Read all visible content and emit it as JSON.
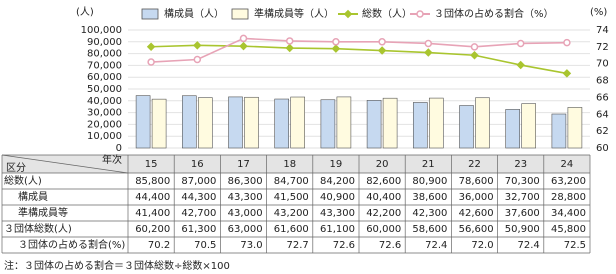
{
  "chart_data": {
    "type": "bar-line",
    "y_label": "(人)",
    "y2_label": "(%)",
    "categories": [
      "15",
      "16",
      "17",
      "18",
      "19",
      "20",
      "21",
      "22",
      "23",
      "24"
    ],
    "ylim": [
      0,
      100000
    ],
    "yticks": [
      {
        "value": 0,
        "label": "0"
      },
      {
        "value": 10000,
        "label": "10,000"
      },
      {
        "value": 20000,
        "label": "20,000"
      },
      {
        "value": 30000,
        "label": "30,000"
      },
      {
        "value": 40000,
        "label": "40,000"
      },
      {
        "value": 50000,
        "label": "50,000"
      },
      {
        "value": 60000,
        "label": "60,000"
      },
      {
        "value": 70000,
        "label": "70,000"
      },
      {
        "value": 80000,
        "label": "80,000"
      },
      {
        "value": 90000,
        "label": "90,000"
      },
      {
        "value": 100000,
        "label": "100,000"
      }
    ],
    "y2lim": [
      60,
      74
    ],
    "y2ticks": [
      60,
      62,
      64,
      66,
      68,
      70,
      72,
      74
    ],
    "grid": true,
    "series": [
      {
        "name": "構成員（人）",
        "type": "bar",
        "color": "#c6d9f0",
        "values": [
          44400,
          44300,
          43300,
          41500,
          40900,
          40400,
          38600,
          36000,
          32700,
          28800
        ]
      },
      {
        "name": "準構成員等（人）",
        "type": "bar",
        "color": "#fffbe0",
        "values": [
          41400,
          42700,
          43000,
          43200,
          43300,
          42200,
          42300,
          42600,
          37600,
          34400
        ]
      },
      {
        "name": "総数（人）",
        "type": "line",
        "color": "#a9c52f",
        "values": [
          85800,
          87000,
          86300,
          84700,
          84200,
          82600,
          80900,
          78600,
          70300,
          63200
        ]
      },
      {
        "name": "３団体の占める割合（%）",
        "type": "line",
        "axis": "y2",
        "color": "#e7a3b6",
        "values": [
          70.2,
          70.5,
          73.0,
          72.7,
          72.6,
          72.6,
          72.4,
          72.0,
          72.4,
          72.5
        ]
      }
    ]
  },
  "table": {
    "corner_col": "年次",
    "corner_row": "区分",
    "rows": [
      {
        "label": "総数(人)",
        "cells": [
          "85,800",
          "87,000",
          "86,300",
          "84,700",
          "84,200",
          "82,600",
          "80,900",
          "78,600",
          "70,300",
          "63,200"
        ]
      },
      {
        "label": "構成員",
        "cells": [
          "44,400",
          "44,300",
          "43,300",
          "41,500",
          "40,900",
          "40,400",
          "38,600",
          "36,000",
          "32,700",
          "28,800"
        ]
      },
      {
        "label": "準構成員等",
        "cells": [
          "41,400",
          "42,700",
          "43,000",
          "43,200",
          "43,300",
          "42,200",
          "42,300",
          "42,600",
          "37,600",
          "34,400"
        ]
      },
      {
        "label": "３団体総数(人)",
        "cells": [
          "60,200",
          "61,300",
          "63,000",
          "61,600",
          "61,100",
          "60,000",
          "58,600",
          "56,600",
          "50,900",
          "45,800"
        ]
      },
      {
        "label": "３団体の占める割合(%)",
        "cells": [
          "70.2",
          "70.5",
          "73.0",
          "72.7",
          "72.6",
          "72.6",
          "72.4",
          "72.0",
          "72.4",
          "72.5"
        ]
      }
    ]
  },
  "note": "注：３団体の占める割合＝３団体総数÷総数×100"
}
